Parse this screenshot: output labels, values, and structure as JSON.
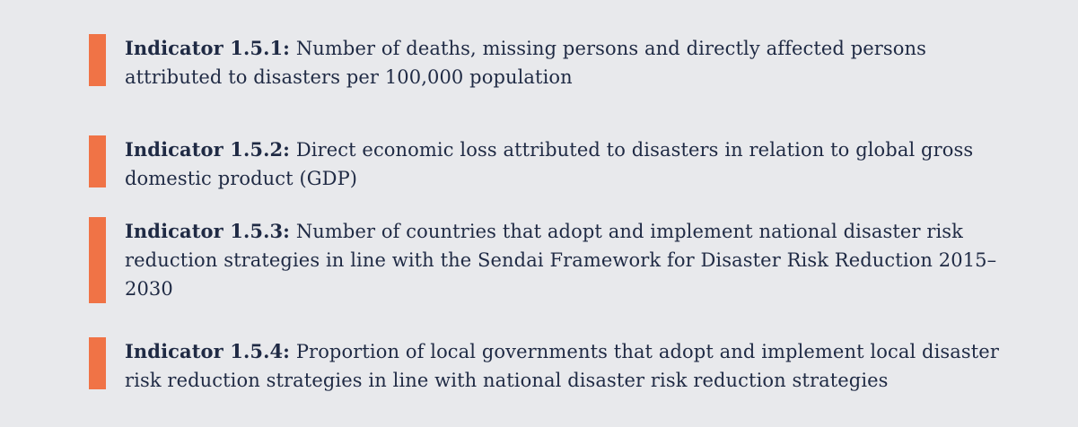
{
  "indicators": [
    {
      "label": "Indicator 1.5.1:",
      "text": " Number of deaths, missing persons and directly affected persons attributed to disasters per 100,000 population"
    },
    {
      "label": "Indicator 1.5.2:",
      "text": " Direct economic loss attributed to disasters in relation to global gross domestic product (GDP)"
    },
    {
      "label": "Indicator 1.5.3:",
      "text": " Number of countries that adopt and implement national disaster risk reduction strategies in line with the Sendai Framework for Disaster Risk Reduction 2015–2030"
    },
    {
      "label": "Indicator 1.5.4:",
      "text": " Proportion of local governments that adopt and implement local disaster risk reduction strategies in line with national disaster risk reduction strategies"
    }
  ],
  "colors": {
    "background": "#e8e9ec",
    "accent_bar": "#f07346",
    "text": "#1f2a44"
  }
}
